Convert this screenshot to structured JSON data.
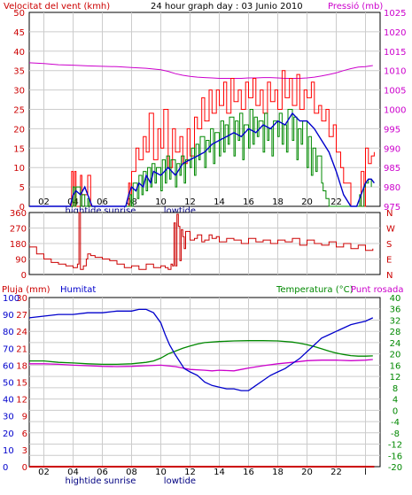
{
  "header": {
    "wind_label": "Velocitat del vent (kmh)",
    "title": "24 hour graph day : 03 Junio 2010",
    "pressure_label": "Pressió (mb)"
  },
  "legend_bottom": {
    "rain_label": "Pluja (mm)",
    "humidity_label": "Humitat",
    "temp_label": "Temperatura (°C)",
    "dew_label": "Punt rosada"
  },
  "time_axis": {
    "tick_labels": [
      "02",
      "04",
      "06",
      "08",
      "10",
      "12",
      "14",
      "16",
      "18",
      "20",
      "22",
      "l"
    ],
    "tide_labels": [
      {
        "text": "hightide",
        "hour": 3.7
      },
      {
        "text": "sunrise",
        "hour": 6.2
      },
      {
        "text": "lowtide",
        "hour": 10.3
      }
    ]
  },
  "colors": {
    "wind_gust": "#ff0000",
    "wind_avg_smooth": "#0000cc",
    "wind_speed": "#008800",
    "pressure": "#cc00cc",
    "direction": "#cc0000",
    "humidity": "#0000cc",
    "temperature": "#008800",
    "dew_point": "#cc00cc",
    "rain": "#cc0000",
    "grid": "#cccccc"
  },
  "chart_data": [
    {
      "type": "line",
      "panel": "wind",
      "x_unit": "hour",
      "ylim_left": [
        0,
        50
      ],
      "left_ticks": [
        0,
        5,
        10,
        15,
        20,
        25,
        30,
        35,
        40,
        45,
        50
      ],
      "ylim_right": [
        975,
        1025
      ],
      "right_ticks": [
        975,
        980,
        985,
        990,
        995,
        1000,
        1005,
        1010,
        1015,
        1020,
        1025
      ],
      "series": [
        {
          "key": "gust",
          "axis": "left",
          "x": [
            0,
            2.8,
            2.9,
            3,
            3.1,
            3.2,
            3.5,
            3.6,
            4,
            4.2,
            4.3,
            4.5,
            5,
            6.5,
            6.8,
            6.9,
            7,
            7.3,
            7.5,
            7.8,
            8,
            8.2,
            8.5,
            8.8,
            9,
            9.2,
            9.5,
            9.8,
            10,
            10.3,
            10.5,
            10.8,
            11,
            11.3,
            11.5,
            11.8,
            12,
            12.3,
            12.5,
            12.8,
            13,
            13.3,
            13.5,
            13.8,
            14,
            14.3,
            14.5,
            14.8,
            15,
            15.3,
            15.5,
            15.8,
            16,
            16.3,
            16.5,
            16.8,
            17,
            17.3,
            17.5,
            17.8,
            18,
            18.3,
            18.5,
            18.8,
            19,
            19.3,
            19.5,
            19.8,
            20,
            20.3,
            20.5,
            20.8,
            21,
            21.3,
            21.5,
            22,
            22.3,
            22.5,
            22.7,
            22.9,
            23,
            23.2,
            23.4,
            23.6
          ],
          "y": [
            0,
            0,
            9,
            0,
            9,
            0,
            8,
            3,
            8,
            0,
            0,
            0,
            0,
            0,
            6,
            0,
            9,
            15,
            12,
            18,
            14,
            24,
            12,
            20,
            15,
            25,
            10,
            20,
            14,
            18,
            11,
            20,
            13,
            23,
            20,
            28,
            22,
            30,
            24,
            30,
            26,
            32,
            24,
            33,
            27,
            30,
            25,
            32,
            28,
            33,
            26,
            30,
            24,
            32,
            27,
            30,
            25,
            35,
            28,
            33,
            26,
            34,
            25,
            30,
            28,
            32,
            24,
            26,
            22,
            25,
            18,
            21,
            14,
            10,
            6,
            0,
            0,
            0,
            9,
            0,
            15,
            11,
            13,
            14
          ]
        },
        {
          "key": "avg",
          "axis": "left",
          "x": [
            0,
            2.8,
            3,
            3.2,
            3.5,
            3.8,
            4,
            4.3,
            5,
            6.6,
            6.8,
            7,
            7.3,
            7.5,
            7.8,
            8,
            8.3,
            8.5,
            9,
            9.5,
            10,
            10.5,
            11,
            11.5,
            12,
            12.5,
            13,
            13.5,
            14,
            14.5,
            15,
            15.5,
            16,
            16.5,
            17,
            17.5,
            18,
            18.5,
            19,
            19.5,
            20,
            20.5,
            21,
            21.5,
            22,
            22.4,
            22.6,
            22.8,
            23,
            23.2,
            23.4,
            23.6
          ],
          "y": [
            0,
            0,
            3,
            4,
            3,
            5,
            3,
            0,
            0,
            0,
            3,
            5,
            4,
            6,
            5,
            8,
            6,
            9,
            8,
            10,
            8,
            11,
            12,
            13,
            14,
            16,
            17,
            18,
            19,
            18,
            20,
            19,
            21,
            20,
            22,
            21,
            24,
            22,
            22,
            20,
            17,
            14,
            9,
            3,
            0,
            0,
            2,
            4,
            6,
            7,
            7,
            6
          ]
        },
        {
          "key": "speed",
          "axis": "left",
          "x": [
            0,
            2.9,
            3,
            3.1,
            3.2,
            3.5,
            3.6,
            3.8,
            4,
            4.1,
            5,
            6.8,
            6.9,
            7,
            7.1,
            7.4,
            7.5,
            7.7,
            7.8,
            8,
            8.1,
            8.3,
            8.4,
            8.6,
            8.7,
            9,
            9.1,
            9.3,
            9.4,
            9.6,
            9.7,
            10,
            10.1,
            10.3,
            10.4,
            10.6,
            10.7,
            11,
            11.1,
            11.3,
            11.4,
            11.6,
            11.7,
            12,
            12.1,
            12.3,
            12.4,
            12.6,
            12.7,
            13,
            13.1,
            13.3,
            13.4,
            13.6,
            13.7,
            14,
            14.1,
            14.3,
            14.4,
            14.6,
            14.7,
            15,
            15.1,
            15.3,
            15.4,
            15.6,
            15.7,
            16,
            16.1,
            16.3,
            16.4,
            16.6,
            16.7,
            17,
            17.1,
            17.3,
            17.4,
            17.6,
            17.7,
            18,
            18.1,
            18.3,
            18.4,
            18.6,
            18.7,
            19,
            19.1,
            19.3,
            19.4,
            19.6,
            19.7,
            20,
            20.1,
            20.3,
            20.5,
            21,
            22.5,
            22.6,
            22.7,
            22.9,
            23,
            23.2,
            23.4
          ],
          "y": [
            0,
            0,
            5,
            0,
            5,
            0,
            3,
            0,
            2,
            0,
            0,
            0,
            3,
            0,
            6,
            2,
            8,
            3,
            9,
            4,
            10,
            5,
            11,
            6,
            10,
            4,
            12,
            6,
            13,
            7,
            12,
            5,
            11,
            8,
            13,
            6,
            12,
            10,
            15,
            8,
            16,
            12,
            18,
            10,
            17,
            14,
            20,
            11,
            19,
            13,
            22,
            14,
            21,
            16,
            23,
            13,
            22,
            17,
            24,
            12,
            21,
            15,
            25,
            16,
            23,
            18,
            22,
            14,
            24,
            17,
            20,
            13,
            22,
            18,
            24,
            16,
            21,
            14,
            25,
            17,
            23,
            12,
            20,
            16,
            22,
            10,
            18,
            8,
            15,
            9,
            13,
            6,
            4,
            2,
            0,
            0,
            0,
            3,
            0,
            5,
            6,
            7,
            5
          ]
        },
        {
          "key": "pressure",
          "axis": "right",
          "x": [
            0,
            1,
            2,
            3,
            4,
            5,
            6,
            7,
            8,
            9,
            9.5,
            10,
            10.5,
            11,
            11.5,
            12,
            12.5,
            13,
            13.5,
            14,
            14.5,
            15,
            15.5,
            16,
            16.5,
            17,
            17.5,
            18,
            18.5,
            19,
            19.5,
            20,
            20.5,
            21,
            21.5,
            22,
            22.5,
            23,
            23.5
          ],
          "y": [
            1012,
            1011.8,
            1011.5,
            1011.4,
            1011.2,
            1011.1,
            1011,
            1010.8,
            1010.6,
            1010.2,
            1009.8,
            1009.2,
            1008.8,
            1008.5,
            1008.3,
            1008.2,
            1008.1,
            1008,
            1008,
            1008,
            1008,
            1008.1,
            1008.1,
            1008.2,
            1008.2,
            1008.1,
            1008,
            1008,
            1008,
            1008.1,
            1008.3,
            1008.6,
            1009,
            1009.4,
            1010,
            1010.5,
            1010.9,
            1011,
            1011.3
          ]
        }
      ]
    },
    {
      "type": "line",
      "panel": "direction",
      "x_unit": "hour",
      "ylim": [
        0,
        360
      ],
      "left_ticks": [
        0,
        90,
        180,
        270,
        360
      ],
      "right_labels": [
        "N",
        "W",
        "S",
        "E",
        "N"
      ],
      "series": [
        {
          "key": "direction",
          "x": [
            0,
            0.5,
            1,
            1.5,
            2,
            2.5,
            3,
            3.3,
            3.4,
            3.5,
            3.7,
            3.9,
            4,
            4.2,
            4.5,
            5,
            5.5,
            6,
            6.5,
            7,
            7.5,
            8,
            8.5,
            9,
            9.3,
            9.5,
            9.7,
            9.8,
            9.9,
            10,
            10.1,
            10.2,
            10.3,
            10.4,
            10.5,
            10.6,
            10.7,
            11,
            11.3,
            11.5,
            11.8,
            12,
            12.3,
            12.5,
            12.8,
            13,
            13.5,
            14,
            14.5,
            15,
            15.5,
            16,
            16.5,
            17,
            17.5,
            18,
            18.5,
            19,
            19.5,
            20,
            20.5,
            21,
            21.5,
            22,
            22.5,
            23,
            23.5
          ],
          "y": [
            160,
            120,
            90,
            70,
            60,
            50,
            40,
            60,
            360,
            30,
            50,
            90,
            120,
            110,
            100,
            90,
            80,
            60,
            40,
            50,
            30,
            60,
            40,
            50,
            40,
            30,
            60,
            50,
            300,
            50,
            350,
            280,
            80,
            260,
            220,
            150,
            250,
            200,
            210,
            230,
            190,
            200,
            230,
            210,
            220,
            190,
            210,
            200,
            180,
            210,
            190,
            200,
            180,
            200,
            190,
            210,
            170,
            200,
            180,
            170,
            190,
            160,
            180,
            150,
            170,
            140,
            150
          ]
        }
      ]
    },
    {
      "type": "line",
      "panel": "climate",
      "x_unit": "hour",
      "ylim_rain": [
        0,
        30
      ],
      "rain_ticks": [
        0,
        3,
        6,
        9,
        12,
        15,
        18,
        21,
        24,
        27,
        30
      ],
      "ylim_humidity": [
        0,
        100
      ],
      "humidity_ticks": [
        0,
        10,
        20,
        30,
        40,
        50,
        60,
        70,
        80,
        90,
        100
      ],
      "ylim_temp": [
        -20,
        40
      ],
      "temp_ticks": [
        -20,
        -16,
        -12,
        -8,
        -4,
        0,
        4,
        8,
        12,
        16,
        20,
        24,
        28,
        32,
        36,
        40
      ],
      "series": [
        {
          "key": "humidity",
          "axis": "humidity",
          "x": [
            0,
            1,
            2,
            3,
            4,
            5,
            6,
            7,
            7.5,
            8,
            8.5,
            9,
            9.3,
            9.6,
            10,
            10.3,
            10.6,
            11,
            11.5,
            12,
            12.5,
            13,
            13.5,
            14,
            14.5,
            15,
            15.5,
            16,
            16.5,
            17,
            17.5,
            18,
            18.5,
            19,
            19.5,
            20,
            20.5,
            21,
            21.5,
            22,
            22.5,
            23,
            23.5
          ],
          "y": [
            88,
            89,
            90,
            90,
            91,
            91,
            92,
            92,
            93,
            93,
            91,
            85,
            78,
            72,
            66,
            62,
            58,
            56,
            54,
            50,
            48,
            47,
            46,
            46,
            45,
            45,
            48,
            51,
            54,
            56,
            58,
            61,
            64,
            68,
            72,
            76,
            78,
            80,
            82,
            84,
            85,
            86,
            88
          ]
        },
        {
          "key": "temperature",
          "axis": "temp",
          "x": [
            0,
            1,
            2,
            3,
            4,
            5,
            6,
            7,
            8,
            8.5,
            9,
            9.5,
            10,
            10.5,
            11,
            11.5,
            12,
            13,
            14,
            15,
            16,
            17,
            18,
            18.5,
            19,
            19.5,
            20,
            20.5,
            21,
            21.5,
            22,
            22.5,
            23,
            23.5
          ],
          "y": [
            17.5,
            17.5,
            17,
            16.8,
            16.5,
            16.3,
            16.3,
            16.5,
            17,
            17.5,
            18.5,
            20,
            21,
            22,
            22.8,
            23.5,
            24,
            24.4,
            24.6,
            24.7,
            24.7,
            24.6,
            24.2,
            23.8,
            23.3,
            22.6,
            21.8,
            21,
            20.3,
            19.8,
            19.4,
            19.2,
            19.2,
            19.3
          ]
        },
        {
          "key": "dew_point",
          "axis": "temp",
          "x": [
            0,
            1,
            2,
            3,
            4,
            5,
            6,
            7,
            8,
            9,
            10,
            10.5,
            11,
            12,
            12.5,
            13,
            14,
            14.5,
            15,
            16,
            17,
            18,
            19,
            20,
            21,
            22,
            23,
            23.5
          ],
          "y": [
            16.5,
            16.5,
            16.3,
            16,
            15.8,
            15.6,
            15.5,
            15.6,
            15.8,
            16,
            15.5,
            15,
            14.5,
            14.2,
            14,
            14.2,
            14,
            14.5,
            15,
            15.8,
            16.5,
            17,
            17.6,
            17.8,
            17.8,
            17.6,
            17.8,
            18
          ]
        },
        {
          "key": "rain",
          "axis": "rain",
          "x": [
            0,
            23.6
          ],
          "y": [
            0,
            0
          ]
        }
      ]
    }
  ]
}
